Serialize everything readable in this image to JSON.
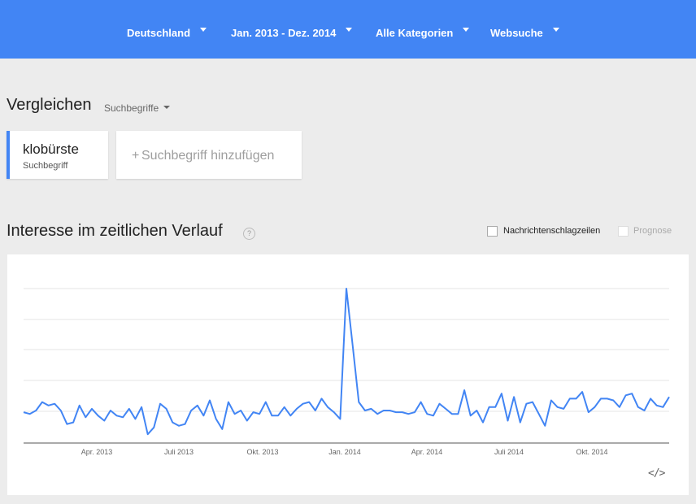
{
  "header": {
    "filters": [
      {
        "label": "Deutschland"
      },
      {
        "label": "Jan. 2013 - Dez. 2014"
      },
      {
        "label": "Alle Kategorien"
      },
      {
        "label": "Websuche"
      }
    ]
  },
  "compare": {
    "title": "Vergleichen",
    "type": "Suchbegriffe",
    "term": {
      "name": "klobürste",
      "type": "Suchbegriff"
    },
    "add_label": "Suchbegriff hinzufügen"
  },
  "interest": {
    "title": "Interesse im zeitlichen Verlauf",
    "help": "?",
    "checkboxes": {
      "news": "Nachrichtenschlagzeilen",
      "forecast": "Prognose"
    },
    "embed_icon": "embed-code-icon"
  },
  "colors": {
    "accent": "#4285f4",
    "line": "#4285f4"
  },
  "chart_data": {
    "type": "line",
    "x_tick_labels": [
      "Apr. 2013",
      "Juli 2013",
      "Okt. 2013",
      "Jan. 2014",
      "Apr. 2014",
      "Juli 2014",
      "Okt. 2014"
    ],
    "x_start": "2013-01",
    "x_end": "2014-12",
    "grid": true,
    "ylim": [
      0,
      100
    ],
    "series": [
      {
        "values": [
          27,
          26,
          28,
          33,
          31,
          32,
          28,
          20,
          21,
          31,
          24,
          29,
          25,
          22,
          28,
          25,
          24,
          29,
          23,
          30,
          14,
          18,
          32,
          29,
          21,
          19,
          20,
          28,
          31,
          25,
          34,
          23,
          17,
          33,
          26,
          28,
          22,
          27,
          26,
          33,
          25,
          25,
          30,
          25,
          29,
          32,
          33,
          28,
          35,
          30,
          27,
          23,
          100,
          67,
          33,
          28,
          29,
          26,
          28,
          28,
          27,
          27,
          26,
          27,
          33,
          26,
          25,
          32,
          29,
          26,
          26,
          40,
          25,
          28,
          21,
          30,
          30,
          38,
          22,
          36,
          21,
          32,
          33,
          26,
          19,
          34,
          30,
          29,
          35,
          35,
          39,
          27,
          30,
          35,
          35,
          34,
          30,
          37,
          38,
          30,
          28,
          35,
          31,
          30,
          36
        ]
      }
    ]
  }
}
